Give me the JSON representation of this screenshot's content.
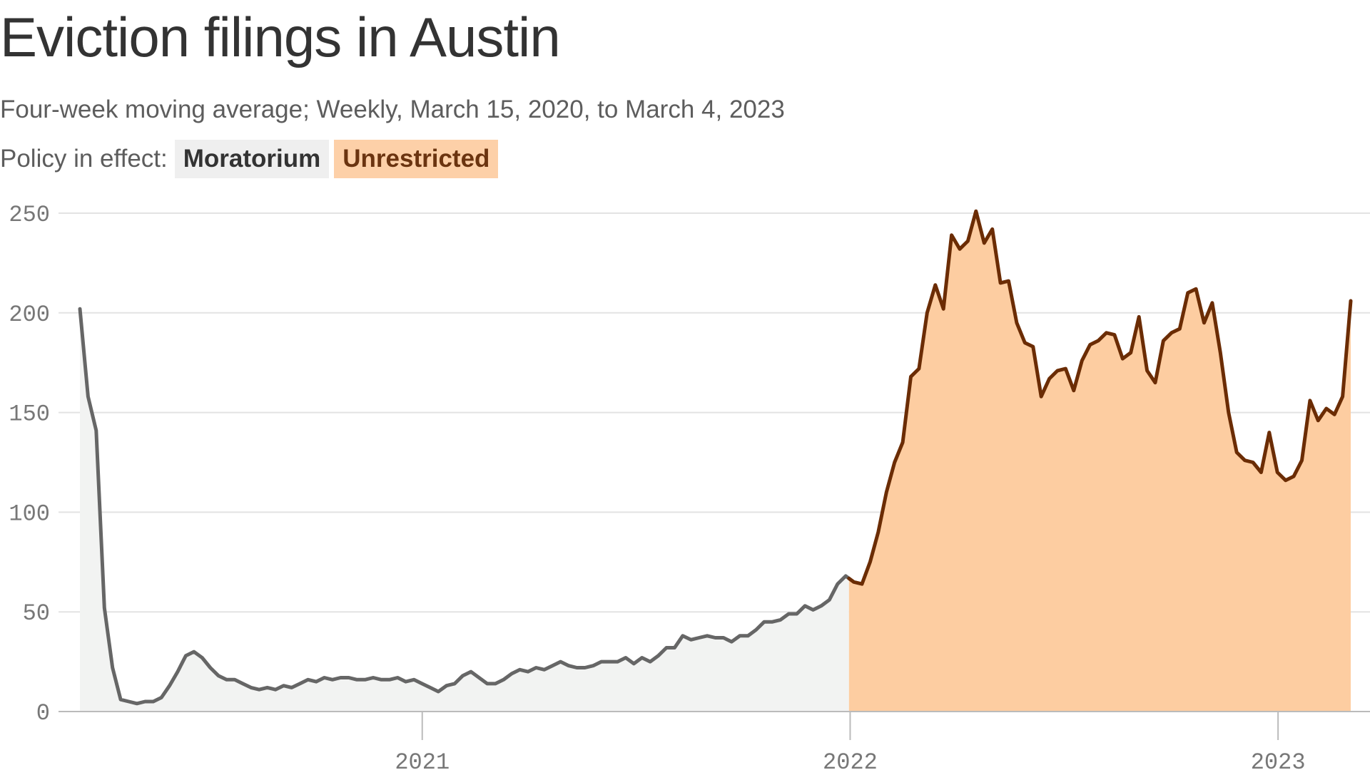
{
  "chart_data": {
    "type": "area",
    "title": "Eviction filings in Austin",
    "subtitle": "Four-week moving average; Weekly, March 15, 2020, to March 4, 2023",
    "legend_label": "Policy in effect:",
    "legend": [
      "Moratorium",
      "Unrestricted"
    ],
    "xlabel": "",
    "ylabel": "",
    "ylim": [
      0,
      250
    ],
    "yticks": [
      0,
      50,
      100,
      150,
      200,
      250
    ],
    "xticks": [
      "2021",
      "2022",
      "2023"
    ],
    "grid": true,
    "colors": {
      "moratorium_line": "#666666",
      "moratorium_fill": "#f2f3f2",
      "unrestricted_line": "#6b2c04",
      "unrestricted_fill": "#fdcda1",
      "grid": "#e3e3e3",
      "axis": "#bbbbbb"
    },
    "start_date": "2020-03-15",
    "end_date": "2023-03-04",
    "policy_change_date": "2021-12-31",
    "weekly_values": [
      202,
      158,
      141,
      52,
      22,
      6,
      5,
      4,
      5,
      5,
      7,
      13,
      20,
      28,
      30,
      27,
      22,
      18,
      16,
      16,
      14,
      12,
      11,
      12,
      11,
      13,
      12,
      14,
      16,
      15,
      17,
      16,
      17,
      17,
      16,
      16,
      17,
      16,
      16,
      17,
      15,
      16,
      14,
      12,
      10,
      13,
      14,
      18,
      20,
      17,
      14,
      14,
      16,
      19,
      21,
      20,
      22,
      21,
      23,
      25,
      23,
      22,
      22,
      23,
      25,
      25,
      25,
      27,
      24,
      27,
      25,
      28,
      32,
      32,
      38,
      36,
      37,
      38,
      37,
      37,
      35,
      38,
      38,
      41,
      45,
      45,
      46,
      49,
      49,
      53,
      51,
      53,
      56,
      64,
      68,
      65,
      64,
      75,
      90,
      110,
      125,
      135,
      168,
      172,
      200,
      214,
      202,
      239,
      232,
      236,
      251,
      235,
      242,
      215,
      216,
      195,
      185,
      183,
      158,
      167,
      171,
      172,
      161,
      176,
      184,
      186,
      190,
      189,
      177,
      180,
      198,
      171,
      165,
      186,
      190,
      192,
      210,
      212,
      195,
      205,
      180,
      150,
      130,
      126,
      125,
      120,
      140,
      120,
      116,
      118,
      126,
      156,
      146,
      152,
      149,
      158,
      206
    ]
  }
}
